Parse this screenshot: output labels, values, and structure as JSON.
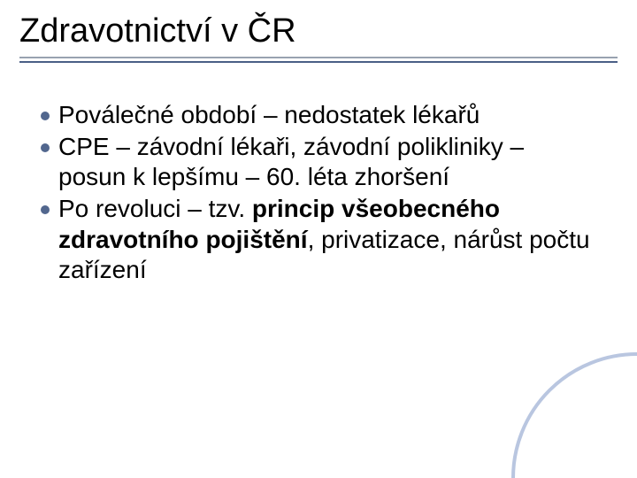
{
  "slide": {
    "title": "Zdravotnictví v ČR",
    "title_fontsize": 38,
    "title_color": "#000000",
    "background_color": "#ffffff",
    "underline": {
      "top_line_color": "#98a2b0",
      "bottom_line_color": "#4a5f86",
      "top_stroke_width": 2,
      "bottom_stroke_width": 2
    },
    "bullets": [
      {
        "dot_color": "#52678e",
        "runs": [
          {
            "text": "Poválečné období – nedostatek lékařů",
            "bold": false
          }
        ]
      },
      {
        "dot_color": "#52678e",
        "runs": [
          {
            "text": "CPE – závodní lékaři, závodní polikliniky – posun k lepšímu – 60. léta zhoršení",
            "bold": false
          }
        ]
      },
      {
        "dot_color": "#52678e",
        "runs": [
          {
            "text": "Po revoluci – tzv. ",
            "bold": false
          },
          {
            "text": "princip všeobecného zdravotního pojištění",
            "bold": true
          },
          {
            "text": ", privatizace, nárůst počtu zařízení",
            "bold": false
          }
        ]
      }
    ],
    "bullet_fontsize": 28,
    "bullet_text_color": "#000000",
    "corner_arc": {
      "stroke": "#b9c6e0",
      "fill": "none",
      "stroke_width": 4
    }
  }
}
